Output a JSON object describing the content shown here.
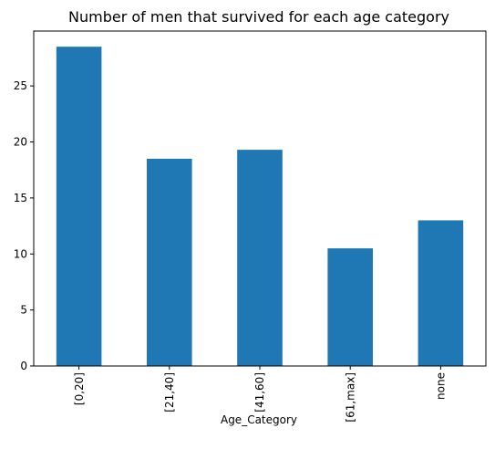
{
  "chart_data": {
    "type": "bar",
    "title": "Number of men that survived for each age category",
    "xlabel": "Age_Category",
    "ylabel": "",
    "categories": [
      "[0,20]",
      "[21,40]",
      "[41,60]",
      "[61,max]",
      "none"
    ],
    "values": [
      28.5,
      18.5,
      19.3,
      10.5,
      13.0
    ],
    "ylim": [
      0,
      29.9
    ],
    "yticks": [
      0,
      5,
      10,
      15,
      20,
      25
    ],
    "grid": false,
    "colors": {
      "bar": "#1f77b4",
      "axis": "#000000",
      "background": "#ffffff"
    }
  }
}
